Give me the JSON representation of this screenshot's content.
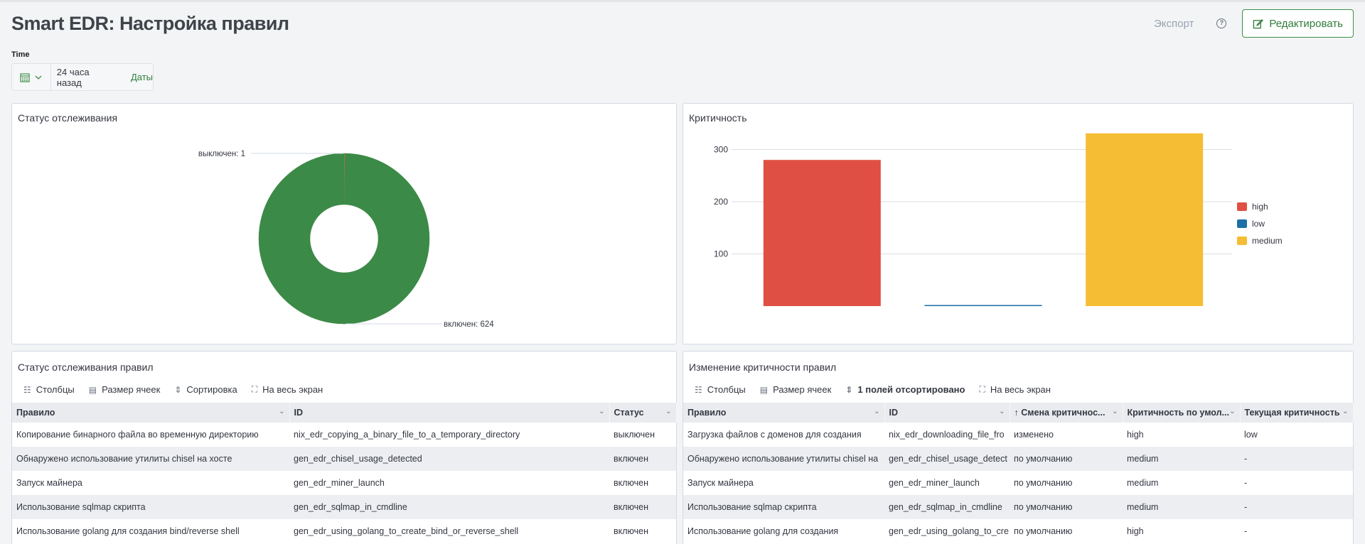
{
  "header": {
    "title": "Smart EDR: Настройка правил",
    "export_label": "Экспорт",
    "help_icon": "question-circle-icon",
    "edit_label": "Редактировать"
  },
  "time": {
    "label": "Time",
    "value": "24 часа назад",
    "dates_label": "Даты"
  },
  "panels": {
    "status": {
      "title": "Статус отслеживания",
      "chart_data": {
        "type": "pie",
        "title": "Статус отслеживания",
        "slices": [
          {
            "label": "выключен",
            "value": 1,
            "color": "#e7664c"
          },
          {
            "label": "включен",
            "value": 624,
            "color": "#3c8a47"
          }
        ],
        "donut": true,
        "label_off": "выключен: 1",
        "label_on": "включен: 624"
      }
    },
    "criticality": {
      "title": "Критичность",
      "chart_data": {
        "type": "bar",
        "title": "Критичность",
        "categories": [
          "high",
          "low",
          "medium"
        ],
        "values": [
          280,
          1,
          331
        ],
        "colors": [
          "#e04f43",
          "#1b6fa6",
          "#f5bd33"
        ],
        "ylim": [
          0,
          350
        ],
        "yticks": [
          100,
          200,
          300
        ],
        "grid": true,
        "legend": "right"
      }
    }
  },
  "table_left": {
    "title": "Статус отслеживания правил",
    "toolbar": {
      "columns": "Столбцы",
      "cell_size": "Размер ячеек",
      "sort": "Сортировка",
      "fullscreen": "На весь экран"
    },
    "headers": [
      "Правило",
      "ID",
      "Статус"
    ],
    "rows": [
      {
        "rule": "Копирование бинарного файла во временную директорию",
        "id": "nix_edr_copying_a_binary_file_to_a_temporary_directory",
        "status": "выключен"
      },
      {
        "rule": "Обнаружено использование утилиты chisel на хосте",
        "id": "gen_edr_chisel_usage_detected",
        "status": "включен"
      },
      {
        "rule": "Запуск майнера",
        "id": "gen_edr_miner_launch",
        "status": "включен"
      },
      {
        "rule": "Использование sqlmap скрипта",
        "id": "gen_edr_sqlmap_in_cmdline",
        "status": "включен"
      },
      {
        "rule": "Использование golang для создания bind/reverse shell",
        "id": "gen_edr_using_golang_to_create_bind_or_reverse_shell",
        "status": "включен"
      }
    ]
  },
  "table_right": {
    "title": "Изменение критичности правил",
    "toolbar": {
      "columns": "Столбцы",
      "cell_size": "Размер ячеек",
      "sorted": "1 полей отсортировано",
      "fullscreen": "На весь экран"
    },
    "headers": [
      "Правило",
      "ID",
      "Смена критичнос...",
      "Критичность по умол...",
      "Текущая критичность"
    ],
    "rows": [
      {
        "rule": "Загрузка файлов с доменов для создания",
        "id": "nix_edr_downloading_file_fro",
        "change": "изменено",
        "default": "high",
        "current": "low"
      },
      {
        "rule": "Обнаружено использование утилиты chisel на",
        "id": "gen_edr_chisel_usage_detect",
        "change": "по умолчанию",
        "default": "medium",
        "current": "-"
      },
      {
        "rule": "Запуск майнера",
        "id": "gen_edr_miner_launch",
        "change": "по умолчанию",
        "default": "medium",
        "current": "-"
      },
      {
        "rule": "Использование sqlmap скрипта",
        "id": "gen_edr_sqlmap_in_cmdline",
        "change": "по умолчанию",
        "default": "medium",
        "current": "-"
      },
      {
        "rule": "Использование golang для создания",
        "id": "gen_edr_using_golang_to_cre",
        "change": "по умолчанию",
        "default": "high",
        "current": "-"
      }
    ]
  }
}
